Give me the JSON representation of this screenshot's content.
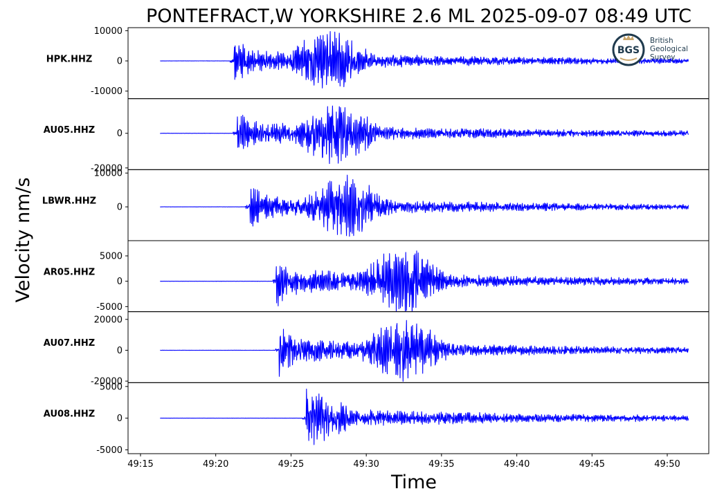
{
  "title": "PONTEFRACT,W YORKSHIRE 2.6 ML   2025-09-07 08:49 UTC",
  "y_axis_label": "Velocity nm/s",
  "x_axis_label": "Time",
  "logo": {
    "abbrev": "BGS",
    "line1": "British",
    "line2": "Geological",
    "line3": "Survey"
  },
  "colors": {
    "trace": "#0000ff",
    "axes": "#000000",
    "background": "#ffffff",
    "logo_ring": "#1f3a4d",
    "logo_crown": "#c9a56a"
  },
  "chart_data": {
    "type": "line",
    "x_unit": "minutes past 08:00 UTC",
    "xlim": [
      49.1,
      53.3
    ],
    "x_ticks": [
      {
        "value": 49.25,
        "label": "49:15"
      },
      {
        "value": 49.3333,
        "label": "49:20"
      },
      {
        "value": 49.4167,
        "label": "49:25"
      },
      {
        "value": 49.5,
        "label": "49:30"
      },
      {
        "value": 49.5833,
        "label": "49:35"
      },
      {
        "value": 49.6667,
        "label": "49:40"
      },
      {
        "value": 49.75,
        "label": "49:45"
      },
      {
        "value": 49.8333,
        "label": "49:50"
      }
    ],
    "trace_start": "49:16.3",
    "trace_end": "49:51.4",
    "grid": false,
    "legend": "none",
    "panels": [
      {
        "station": "HPK.HHZ",
        "ylim": [
          -12500,
          11000
        ],
        "y_ticks": [
          {
            "value": 10000,
            "label": "10000"
          },
          {
            "value": 0,
            "label": "0"
          },
          {
            "value": -10000,
            "label": "-10000"
          }
        ],
        "p_arrival": "49:21.2",
        "peak_time": "49:27.5",
        "max_amplitude": 10500,
        "min_amplitude": -11300
      },
      {
        "station": "AU05.HHZ",
        "ylim": [
          -21000,
          20000
        ],
        "y_ticks": [
          {
            "value": 0,
            "label": "0"
          },
          {
            "value": -20000,
            "label": "-20000"
          }
        ],
        "p_arrival": "49:21.4",
        "peak_time": "49:28.0",
        "max_amplitude": 18000,
        "min_amplitude": -20000
      },
      {
        "station": "LBWR.HHZ",
        "ylim": [
          -10000,
          11000
        ],
        "y_ticks": [
          {
            "value": 10000,
            "label": "10000"
          },
          {
            "value": 0,
            "label": "0"
          }
        ],
        "p_arrival": "49:22.2",
        "peak_time": "49:28.6",
        "max_amplitude": 10000,
        "min_amplitude": -9000
      },
      {
        "station": "AR05.HHZ",
        "ylim": [
          -6000,
          8000
        ],
        "y_ticks": [
          {
            "value": 5000,
            "label": "5000"
          },
          {
            "value": 0,
            "label": "0"
          },
          {
            "value": -5000,
            "label": "-5000"
          }
        ],
        "p_arrival": "49:24.0",
        "peak_time": "49:32.4",
        "max_amplitude": 7500,
        "min_amplitude": -5700
      },
      {
        "station": "AU07.HHZ",
        "ylim": [
          -21000,
          25000
        ],
        "y_ticks": [
          {
            "value": 20000,
            "label": "20000"
          },
          {
            "value": 0,
            "label": "0"
          },
          {
            "value": -20000,
            "label": "-20000"
          }
        ],
        "p_arrival": "49:24.2",
        "peak_time": "49:32.5",
        "max_amplitude": 23500,
        "min_amplitude": -21000
      },
      {
        "station": "AU08.HHZ",
        "ylim": [
          -5600,
          5600
        ],
        "y_ticks": [
          {
            "value": 5000,
            "label": "5000"
          },
          {
            "value": 0,
            "label": "0"
          },
          {
            "value": -5000,
            "label": "-5000"
          }
        ],
        "p_arrival": "49:26.0",
        "peak_time": "49:26.3",
        "max_amplitude": 4900,
        "min_amplitude": -5100
      }
    ]
  }
}
